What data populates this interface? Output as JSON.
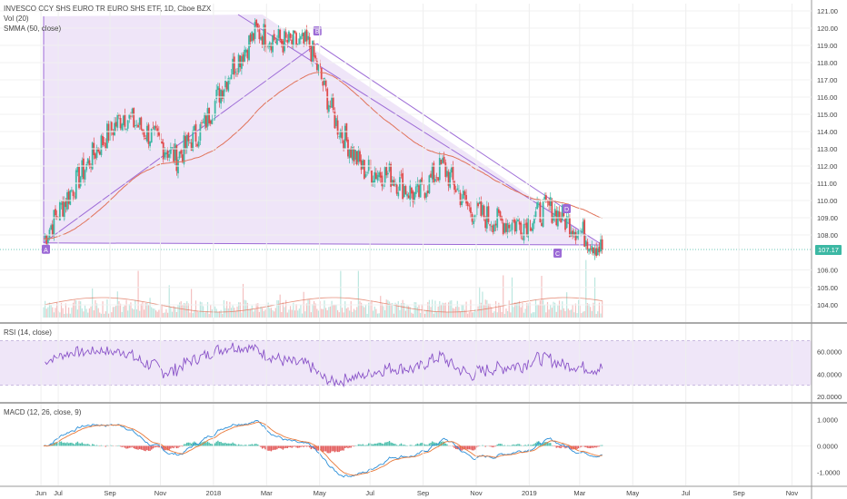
{
  "legend": {
    "main_title": "INVESCO CCY SHS EURO TR EURO SHS ETF, 1D, Cboe BZX",
    "vol": "Vol (20)",
    "smma": "SMMA (50, close)",
    "rsi": "RSI (14, close)",
    "macd": "MACD (12, 26, close, 9)"
  },
  "current_price": "107.17",
  "colors": {
    "up": "#3cb8a4",
    "down": "#e04b4b",
    "smma": "#e0735a",
    "triangle": "#9c6ad6",
    "triangle_fill": "#e9dcf6",
    "rsi_line": "#8a54c8",
    "rsi_band": "#efe6f8",
    "macd_line": "#2b8fd8",
    "signal_line": "#e8793a"
  },
  "chart_data": [
    {
      "type": "candlestick",
      "title": "INVESCO CCY SHS EURO TR EURO SHS ETF, 1D, Cboe BZX",
      "y_ticks": [
        "121.00",
        "120.00",
        "119.00",
        "118.00",
        "117.00",
        "116.00",
        "115.00",
        "114.00",
        "113.00",
        "112.00",
        "111.00",
        "110.00",
        "109.00",
        "108.00",
        "106.00",
        "105.00",
        "104.00"
      ],
      "ylim": [
        103.2,
        121.3
      ],
      "x_ticks": [
        "Jun",
        "Jul",
        "Sep",
        "Nov",
        "2018",
        "Mar",
        "May",
        "Jul",
        "Sep",
        "Nov",
        "2019",
        "Mar",
        "May",
        "Jul",
        "Sep",
        "Nov"
      ],
      "date_range": [
        "2017-06",
        "2019-03"
      ],
      "close_series_monthly": [
        {
          "date": "2017-06",
          "close": 107.8
        },
        {
          "date": "2017-07",
          "close": 110.5
        },
        {
          "date": "2017-08",
          "close": 113.0
        },
        {
          "date": "2017-09",
          "close": 115.0
        },
        {
          "date": "2017-10",
          "close": 113.8
        },
        {
          "date": "2017-11",
          "close": 112.5
        },
        {
          "date": "2017-12",
          "close": 114.3
        },
        {
          "date": "2018-01",
          "close": 117.5
        },
        {
          "date": "2018-02",
          "close": 119.8
        },
        {
          "date": "2018-03",
          "close": 119.2
        },
        {
          "date": "2018-04",
          "close": 119.0
        },
        {
          "date": "2018-05",
          "close": 114.5
        },
        {
          "date": "2018-06",
          "close": 111.8
        },
        {
          "date": "2018-07",
          "close": 111.5
        },
        {
          "date": "2018-08",
          "close": 110.2
        },
        {
          "date": "2018-09",
          "close": 112.0
        },
        {
          "date": "2018-10",
          "close": 109.5
        },
        {
          "date": "2018-11",
          "close": 108.8
        },
        {
          "date": "2018-12",
          "close": 108.6
        },
        {
          "date": "2019-01",
          "close": 109.6
        },
        {
          "date": "2019-02",
          "close": 108.4
        },
        {
          "date": "2019-03",
          "close": 107.17
        }
      ],
      "triangle_points": [
        {
          "label": "A",
          "date": "2017-06",
          "price": 107.7
        },
        {
          "label": "B",
          "date": "2018-04",
          "price": 119.1
        },
        {
          "label": "C",
          "date": "2019-02",
          "price": 107.6
        },
        {
          "label": "D",
          "date": "2019-03",
          "price": 109.3
        }
      ],
      "series": [
        {
          "name": "SMMA (50, close)"
        },
        {
          "name": "Vol (20)"
        }
      ]
    },
    {
      "type": "line",
      "title": "RSI (14, close)",
      "y_ticks": [
        "60.0000",
        "40.0000",
        "20.0000"
      ],
      "ylim": [
        15,
        85
      ],
      "band": [
        30,
        70
      ]
    },
    {
      "type": "line",
      "title": "MACD (12, 26, close, 9)",
      "y_ticks": [
        "1.0000",
        "0.0000",
        "-1.0000"
      ],
      "ylim": [
        -1.5,
        1.6
      ]
    }
  ]
}
